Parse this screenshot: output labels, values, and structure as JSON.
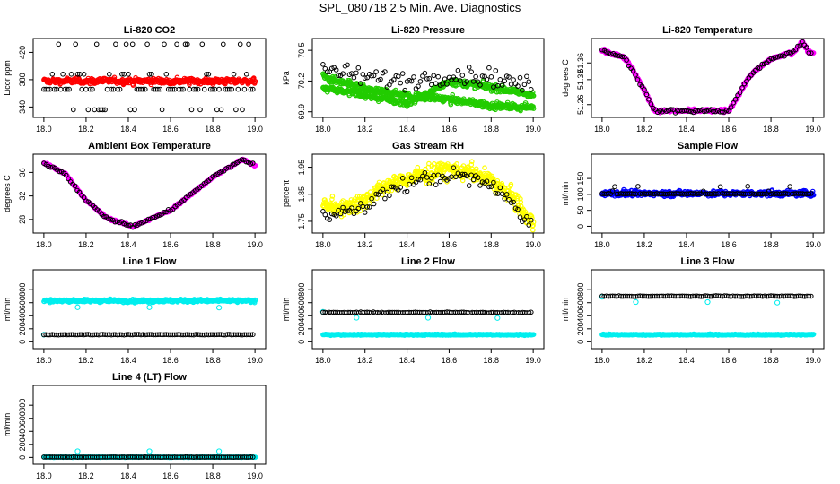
{
  "page": {
    "title": "SPL_080718  2.5 Min. Ave. Diagnostics"
  },
  "colors": {
    "black": "#000000",
    "red": "#ff0000",
    "green": "#22cc00",
    "magenta": "#ff00ff",
    "yellow": "#ffff00",
    "blue": "#0000ff",
    "cyan": "#00eeee"
  },
  "chart_data": [
    {
      "type": "scatter",
      "title": "Li-820 CO2",
      "ylabel": "Licor ppm",
      "xlim": [
        18.0,
        19.0
      ],
      "ylim": [
        330,
        435
      ],
      "xticks": [
        18.0,
        18.2,
        18.4,
        18.6,
        18.8,
        19.0
      ],
      "yticks": [
        340,
        380,
        420
      ],
      "series": [
        {
          "color": "red",
          "style": "dense",
          "shape": "flat",
          "base": 378,
          "noise": 2.5,
          "n": 260,
          "spread": 1.0
        },
        {
          "color": "black",
          "style": "sparse",
          "shape": "levels",
          "levels": [
            336,
            366,
            388,
            432
          ],
          "n": 100
        }
      ]
    },
    {
      "type": "scatter",
      "title": "Li-820 Pressure",
      "ylabel": "kPa",
      "xlim": [
        18.0,
        19.0
      ],
      "ylim": [
        69.88,
        70.58
      ],
      "xticks": [
        18.0,
        18.2,
        18.4,
        18.6,
        18.8,
        19.0
      ],
      "yticks": [
        69.9,
        70.2,
        70.5
      ],
      "series": [
        {
          "color": "green",
          "style": "dense",
          "shape": "profile",
          "profile": [
            [
              18.0,
              70.24
            ],
            [
              18.2,
              70.12
            ],
            [
              18.4,
              70.06
            ],
            [
              18.6,
              70.02
            ],
            [
              18.8,
              69.96
            ],
            [
              19.0,
              69.94
            ]
          ],
          "noise": 0.02,
          "n": 260,
          "spread": 1.0
        },
        {
          "color": "green",
          "style": "dense",
          "shape": "profile",
          "profile": [
            [
              18.0,
              70.14
            ],
            [
              18.2,
              70.06
            ],
            [
              18.4,
              69.98
            ],
            [
              18.5,
              70.08
            ],
            [
              18.6,
              70.2
            ],
            [
              18.8,
              70.14
            ],
            [
              19.0,
              70.06
            ]
          ],
          "noise": 0.02,
          "n": 260,
          "spread": 1.0
        },
        {
          "color": "black",
          "style": "sparse",
          "shape": "profile",
          "profile": [
            [
              18.0,
              70.32
            ],
            [
              18.2,
              70.24
            ],
            [
              18.4,
              70.2
            ],
            [
              18.6,
              70.26
            ],
            [
              18.8,
              70.24
            ],
            [
              19.0,
              70.14
            ]
          ],
          "noise": 0.06,
          "n": 95
        }
      ]
    },
    {
      "type": "scatter",
      "title": "Li-820 Temperature",
      "ylabel": "degrees C",
      "xlim": [
        18.0,
        19.0
      ],
      "ylim": [
        51.238,
        51.41
      ],
      "xticks": [
        18.0,
        18.2,
        18.4,
        18.6,
        18.8,
        19.0
      ],
      "yticks": [
        51.26,
        51.32,
        51.36
      ],
      "series": [
        {
          "color": "magenta",
          "style": "dense",
          "shape": "profile",
          "profile": [
            [
              18.0,
              51.39
            ],
            [
              18.1,
              51.375
            ],
            [
              18.15,
              51.34
            ],
            [
              18.25,
              51.245
            ],
            [
              18.6,
              51.245
            ],
            [
              18.7,
              51.33
            ],
            [
              18.8,
              51.37
            ],
            [
              18.9,
              51.385
            ],
            [
              18.95,
              51.41
            ],
            [
              18.98,
              51.385
            ]
          ],
          "noise": 0.0025,
          "n": 220,
          "spread": 0.5
        },
        {
          "color": "black",
          "style": "sparse",
          "shape": "profile",
          "profile": [
            [
              18.0,
              51.39
            ],
            [
              18.1,
              51.375
            ],
            [
              18.15,
              51.34
            ],
            [
              18.25,
              51.245
            ],
            [
              18.6,
              51.245
            ],
            [
              18.7,
              51.33
            ],
            [
              18.8,
              51.37
            ],
            [
              18.9,
              51.385
            ],
            [
              18.95,
              51.41
            ],
            [
              18.98,
              51.385
            ]
          ],
          "noise": 0.003,
          "n": 95
        }
      ]
    },
    {
      "type": "scatter",
      "title": "Ambient Box Temperature",
      "ylabel": "degrees C",
      "xlim": [
        18.0,
        19.0
      ],
      "ylim": [
        26.3,
        38.5
      ],
      "xticks": [
        18.0,
        18.2,
        18.4,
        18.6,
        18.8,
        19.0
      ],
      "yticks": [
        28,
        32,
        36
      ],
      "series": [
        {
          "color": "magenta",
          "style": "dense",
          "shape": "profile",
          "profile": [
            [
              18.0,
              37.6
            ],
            [
              18.1,
              35.8
            ],
            [
              18.2,
              31.2
            ],
            [
              18.3,
              28.2
            ],
            [
              18.42,
              26.8
            ],
            [
              18.5,
              28.0
            ],
            [
              18.6,
              29.6
            ],
            [
              18.7,
              32.4
            ],
            [
              18.8,
              35.2
            ],
            [
              18.9,
              37.4
            ],
            [
              18.94,
              38.2
            ],
            [
              19.0,
              37.2
            ]
          ],
          "noise": 0.1,
          "n": 220,
          "spread": 0.5
        },
        {
          "color": "black",
          "style": "sparse",
          "shape": "profile",
          "profile": [
            [
              18.0,
              37.6
            ],
            [
              18.1,
              35.8
            ],
            [
              18.2,
              31.2
            ],
            [
              18.3,
              28.2
            ],
            [
              18.42,
              26.8
            ],
            [
              18.5,
              28.0
            ],
            [
              18.6,
              29.6
            ],
            [
              18.7,
              32.4
            ],
            [
              18.8,
              35.2
            ],
            [
              18.9,
              37.4
            ],
            [
              18.94,
              38.2
            ],
            [
              19.0,
              37.2
            ]
          ],
          "noise": 0.15,
          "n": 95
        }
      ]
    },
    {
      "type": "scatter",
      "title": "Gas Stream RH",
      "ylabel": "percent",
      "xlim": [
        18.0,
        19.0
      ],
      "ylim": [
        1.72,
        1.985
      ],
      "xticks": [
        18.0,
        18.2,
        18.4,
        18.6,
        18.8,
        19.0
      ],
      "yticks": [
        1.75,
        1.85,
        1.95
      ],
      "series": [
        {
          "color": "yellow",
          "style": "dense",
          "shape": "profile",
          "profile": [
            [
              18.0,
              1.81
            ],
            [
              18.1,
              1.8
            ],
            [
              18.2,
              1.83
            ],
            [
              18.3,
              1.88
            ],
            [
              18.45,
              1.92
            ],
            [
              18.6,
              1.94
            ],
            [
              18.7,
              1.93
            ],
            [
              18.8,
              1.9
            ],
            [
              18.9,
              1.84
            ],
            [
              18.97,
              1.76
            ],
            [
              19.0,
              1.74
            ]
          ],
          "noise": 0.018,
          "n": 280,
          "spread": 1.0
        },
        {
          "color": "black",
          "style": "sparse",
          "shape": "profile",
          "profile": [
            [
              18.0,
              1.79
            ],
            [
              18.1,
              1.78
            ],
            [
              18.2,
              1.8
            ],
            [
              18.3,
              1.86
            ],
            [
              18.45,
              1.9
            ],
            [
              18.6,
              1.92
            ],
            [
              18.7,
              1.91
            ],
            [
              18.8,
              1.88
            ],
            [
              18.9,
              1.82
            ],
            [
              18.97,
              1.75
            ],
            [
              19.0,
              1.73
            ]
          ],
          "noise": 0.02,
          "n": 95
        }
      ]
    },
    {
      "type": "scatter",
      "title": "Sample Flow",
      "ylabel": "ml/min",
      "xlim": [
        18.0,
        19.0
      ],
      "ylim": [
        -10,
        215
      ],
      "xticks": [
        18.0,
        18.2,
        18.4,
        18.6,
        18.8,
        19.0
      ],
      "yticks": [
        0,
        50,
        100,
        150
      ],
      "series": [
        {
          "color": "blue",
          "style": "dense",
          "shape": "flat",
          "base": 103,
          "noise": 5,
          "n": 260,
          "spread": 1.2
        },
        {
          "color": "black",
          "style": "sparse",
          "shape": "levels",
          "levels": [
            100,
            104,
            110,
            125
          ],
          "n": 100
        }
      ]
    },
    {
      "type": "scatter",
      "title": "Line 1 Flow",
      "ylabel": "ml/min",
      "xlim": [
        18.0,
        19.0
      ],
      "ylim": [
        -50,
        1050
      ],
      "xticks": [
        18.0,
        18.2,
        18.4,
        18.6,
        18.8,
        19.0
      ],
      "yticks": [
        0,
        200,
        400,
        600,
        800
      ],
      "series": [
        {
          "color": "cyan",
          "style": "dense",
          "shape": "flat",
          "base": 630,
          "noise": 14,
          "n": 260,
          "spread": 1.5
        },
        {
          "color": "cyan",
          "style": "points",
          "points": [
            [
              18.0,
              110
            ],
            [
              18.16,
              530
            ],
            [
              18.5,
              530
            ],
            [
              18.83,
              525
            ]
          ]
        },
        {
          "color": "black",
          "style": "sparse",
          "shape": "flat",
          "base": 110,
          "noise": 3,
          "n": 100
        }
      ]
    },
    {
      "type": "scatter",
      "title": "Line 2 Flow",
      "ylabel": "ml/min",
      "xlim": [
        18.0,
        19.0
      ],
      "ylim": [
        -50,
        1050
      ],
      "xticks": [
        18.0,
        18.2,
        18.4,
        18.6,
        18.8,
        19.0
      ],
      "yticks": [
        0,
        200,
        400,
        600,
        800
      ],
      "series": [
        {
          "color": "cyan",
          "style": "dense",
          "shape": "flat",
          "base": 110,
          "noise": 5,
          "n": 260,
          "spread": 1.5
        },
        {
          "color": "cyan",
          "style": "points",
          "points": [
            [
              18.0,
              460
            ],
            [
              18.16,
              370
            ],
            [
              18.5,
              370
            ],
            [
              18.83,
              365
            ]
          ]
        },
        {
          "color": "black",
          "style": "sparse",
          "shape": "flat",
          "base": 450,
          "noise": 4,
          "n": 100
        }
      ]
    },
    {
      "type": "scatter",
      "title": "Line 3 Flow",
      "ylabel": "ml/min",
      "xlim": [
        18.0,
        19.0
      ],
      "ylim": [
        -50,
        1050
      ],
      "xticks": [
        18.0,
        18.2,
        18.4,
        18.6,
        18.8,
        19.0
      ],
      "yticks": [
        0,
        200,
        400,
        600,
        800
      ],
      "series": [
        {
          "color": "cyan",
          "style": "dense",
          "shape": "flat",
          "base": 110,
          "noise": 5,
          "n": 260,
          "spread": 1.5
        },
        {
          "color": "cyan",
          "style": "points",
          "points": [
            [
              18.0,
              690
            ],
            [
              18.16,
              610
            ],
            [
              18.5,
              610
            ],
            [
              18.83,
              600
            ]
          ]
        },
        {
          "color": "black",
          "style": "sparse",
          "shape": "flat",
          "base": 700,
          "noise": 4,
          "n": 100
        }
      ]
    },
    {
      "type": "scatter",
      "title": "Line 4 (LT) Flow",
      "ylabel": "ml/min",
      "xlim": [
        18.0,
        19.0
      ],
      "ylim": [
        -50,
        1050
      ],
      "xticks": [
        18.0,
        18.2,
        18.4,
        18.6,
        18.8,
        19.0
      ],
      "yticks": [
        0,
        200,
        400,
        600,
        800
      ],
      "series": [
        {
          "color": "cyan",
          "style": "dense",
          "shape": "flat",
          "base": 5,
          "noise": 3,
          "n": 200,
          "spread": 1.2
        },
        {
          "color": "cyan",
          "style": "points",
          "points": [
            [
              18.16,
              95
            ],
            [
              18.5,
              95
            ],
            [
              18.83,
              95
            ]
          ]
        },
        {
          "color": "black",
          "style": "sparse",
          "shape": "flat",
          "base": 5,
          "noise": 2,
          "n": 100
        }
      ]
    }
  ]
}
